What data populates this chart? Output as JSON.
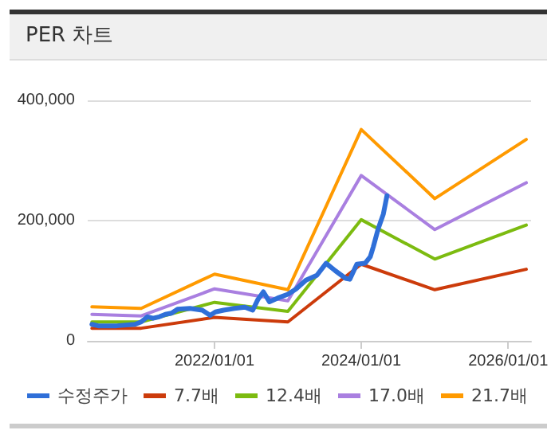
{
  "chart_data": {
    "type": "line",
    "title": "PER 차트",
    "xlim": [
      "2020-04-10",
      "2026-04-25"
    ],
    "xticks": [
      {
        "value": "2022-01-01",
        "label": "2022/01/01"
      },
      {
        "value": "2024-01-01",
        "label": "2024/01/01"
      },
      {
        "value": "2026-01-01",
        "label": "2026/01/01"
      }
    ],
    "ylim": [
      0,
      400000
    ],
    "yticks": [
      0,
      {
        "value": 200000,
        "label": "200,000"
      },
      {
        "value": 400000,
        "label": "400,000"
      }
    ],
    "grid": "y",
    "legend": "bottom",
    "marker": "none",
    "line_style": "solid",
    "series": [
      {
        "name": "수정주가",
        "color": "#2f6fd8",
        "x": [
          "2020-05-01",
          "2020-06-01",
          "2020-09-01",
          "2020-12-01",
          "2021-01-01",
          "2021-02-01",
          "2021-03-01",
          "2021-04-01",
          "2021-05-01",
          "2021-06-01",
          "2021-07-01",
          "2021-09-01",
          "2021-11-01",
          "2021-12-10",
          "2022-01-05",
          "2022-02-15",
          "2022-04-10",
          "2022-06-01",
          "2022-07-10",
          "2022-08-05",
          "2022-09-01",
          "2022-10-01",
          "2022-11-10",
          "2023-01-01",
          "2023-02-10",
          "2023-04-01",
          "2023-05-25",
          "2023-07-10",
          "2023-08-25",
          "2023-10-15",
          "2023-11-05",
          "2023-12-10",
          "2024-01-20",
          "2024-02-15",
          "2024-03-01",
          "2024-03-25",
          "2024-04-20",
          "2024-05-08"
        ],
        "values": [
          27500,
          25000,
          25000,
          27500,
          31500,
          40000,
          37500,
          40000,
          44000,
          46000,
          52500,
          54000,
          51000,
          42500,
          48000,
          51000,
          54000,
          56000,
          51000,
          69000,
          81500,
          65000,
          71000,
          77500,
          86000,
          101000,
          109000,
          129000,
          116500,
          104000,
          102500,
          127500,
          129000,
          140000,
          156500,
          186000,
          211000,
          241500
        ]
      },
      {
        "name": "7.7배",
        "color": "#cc3b0b",
        "values": [
          21000,
          21000,
          39000,
          31500,
          127500,
          85000,
          119000
        ]
      },
      {
        "name": "12.4배",
        "color": "#7cbb10",
        "values": [
          31500,
          31500,
          64000,
          49000,
          201500,
          136000,
          192500
        ]
      },
      {
        "name": "17.0배",
        "color": "#a97fe0",
        "values": [
          44000,
          41500,
          86500,
          66500,
          275000,
          185000,
          263000
        ]
      },
      {
        "name": "21.7배",
        "color": "#ff9a00",
        "values": [
          56500,
          54000,
          111000,
          85000,
          351500,
          236500,
          335000
        ]
      }
    ],
    "x": [
      "2020-05-01",
      "2021-01-01",
      "2022-01-01",
      "2023-01-01",
      "2024-01-01",
      "2025-01-01",
      "2026-04-01"
    ]
  }
}
